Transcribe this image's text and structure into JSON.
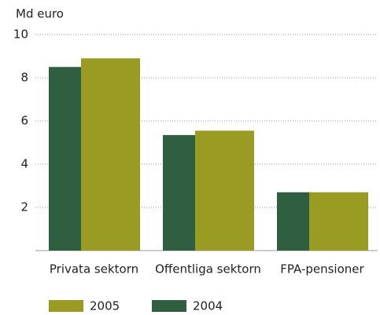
{
  "chart_data": {
    "type": "bar",
    "y_label": "Md euro",
    "categories": [
      "Privata sektorn",
      "Offentliga sektorn",
      "FPA-pensioner"
    ],
    "series": [
      {
        "name": "2005",
        "color": "#9a9b22",
        "values": [
          8.9,
          5.55,
          2.7
        ]
      },
      {
        "name": "2004",
        "color": "#2f5f40",
        "values": [
          8.5,
          5.35,
          2.7
        ]
      }
    ],
    "ylim": [
      0,
      10
    ],
    "yticks": [
      2,
      4,
      6,
      8,
      10
    ],
    "grid": true
  }
}
